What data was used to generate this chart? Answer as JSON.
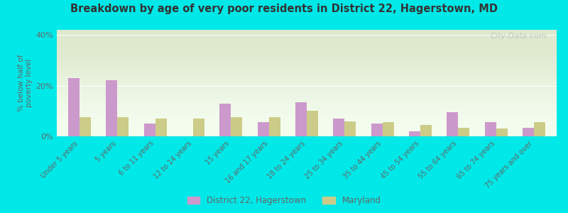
{
  "title": "Breakdown by age of very poor residents in District 22, Hagerstown, MD",
  "ylabel": "% below half of\npoverty level",
  "categories": [
    "Under 5 years",
    "5 years",
    "6 to 11 years",
    "12 to 14 years",
    "15 years",
    "16 and 17 years",
    "18 to 24 years",
    "25 to 34 years",
    "35 to 44 years",
    "45 to 54 years",
    "55 to 64 years",
    "65 to 74 years",
    "75 years and over"
  ],
  "district_values": [
    23.0,
    22.0,
    5.0,
    0.0,
    13.0,
    5.5,
    13.5,
    7.0,
    5.0,
    2.0,
    9.5,
    5.5,
    3.5
  ],
  "maryland_values": [
    7.5,
    7.5,
    7.0,
    7.0,
    7.5,
    7.5,
    10.0,
    6.0,
    5.5,
    4.5,
    3.5,
    3.0,
    5.5
  ],
  "district_color": "#cc99cc",
  "maryland_color": "#cccc88",
  "ylim_max": 42,
  "yticks": [
    0,
    20,
    40
  ],
  "ytick_labels": [
    "0%",
    "20%",
    "40%"
  ],
  "background_top": "#dde8cc",
  "background_bottom": "#f5fef0",
  "outer_bg": "#00e8e8",
  "title_color": "#333333",
  "label_color": "#666666",
  "legend_district": "District 22, Hagerstown",
  "legend_maryland": "Maryland",
  "watermark": "City-Data.com"
}
